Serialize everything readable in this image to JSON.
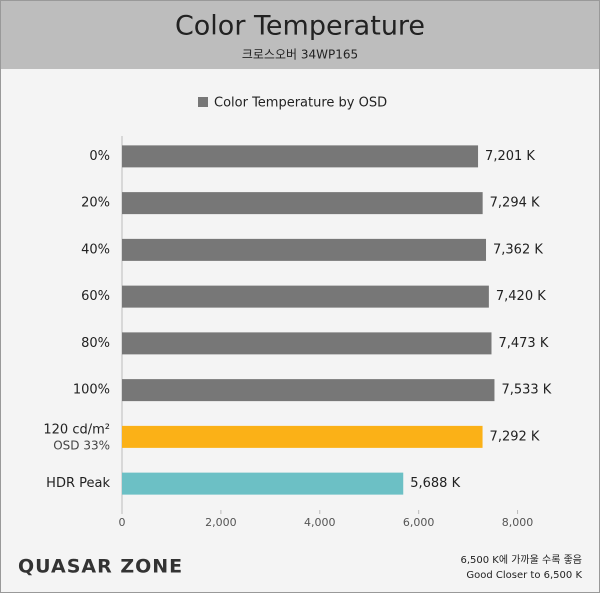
{
  "chart_data": {
    "type": "bar",
    "orientation": "horizontal",
    "title": "Color Temperature",
    "subtitle": "크로스오버 34WP165",
    "legend": "Color Temperature by OSD",
    "legend_color": "#777777",
    "legend_position": "top",
    "categories": [
      {
        "label": "0%"
      },
      {
        "label": "20%"
      },
      {
        "label": "40%"
      },
      {
        "label": "60%"
      },
      {
        "label": "80%"
      },
      {
        "label": "100%"
      },
      {
        "label": "120 cd/m²",
        "note": "OSD 33%"
      },
      {
        "label": "HDR Peak"
      }
    ],
    "values": [
      7201,
      7294,
      7362,
      7420,
      7473,
      7533,
      7292,
      5688
    ],
    "value_labels": [
      "7,201 K",
      "7,294 K",
      "7,362 K",
      "7,420 K",
      "7,473 K",
      "7,533 K",
      "7,292 K",
      "5,688 K"
    ],
    "colors": [
      "#777777",
      "#777777",
      "#777777",
      "#777777",
      "#777777",
      "#777777",
      "#fbb117",
      "#6cc0c5"
    ],
    "xlim": [
      0,
      9000
    ],
    "xticks": [
      0,
      {
        "value": 2000,
        "label": "2,000"
      },
      {
        "value": 4000,
        "label": "4,000"
      },
      {
        "value": 6000,
        "label": "6,000"
      },
      {
        "value": 8000,
        "label": "8,000"
      }
    ],
    "grid": false,
    "logo": "QUASAR ZONE",
    "notes": [
      "6,500 K에 가까울 수록 좋음",
      "Good Closer to 6,500 K"
    ]
  }
}
